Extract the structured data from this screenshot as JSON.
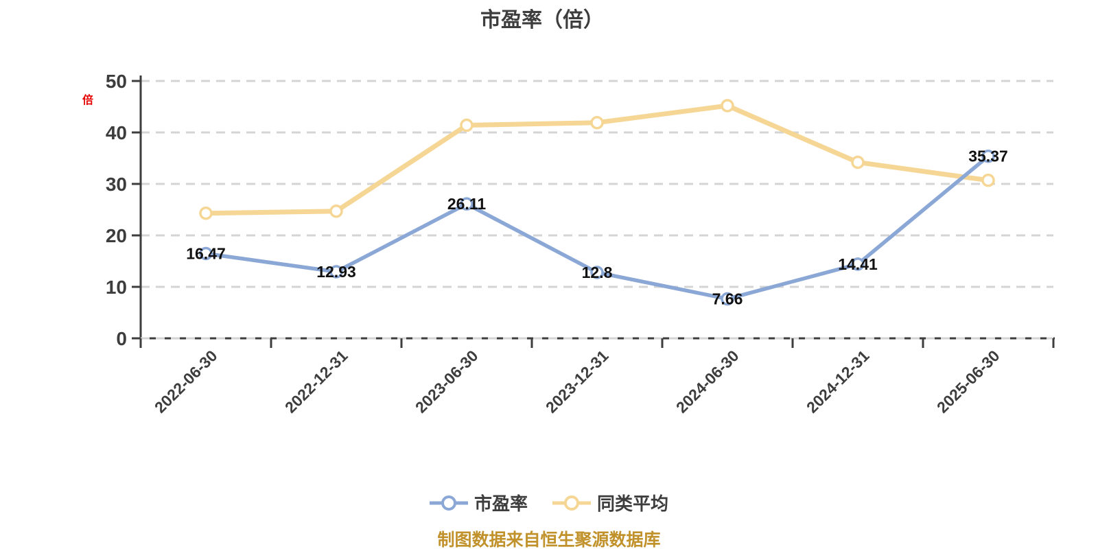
{
  "title": "市盈率（倍）",
  "y_unit_label": "倍",
  "source_note": "制图数据来自恒生聚源数据库",
  "colors": {
    "axis": "#3d3d3d",
    "grid": "#d4d4d4",
    "tick_text": "#3d3d3d",
    "data_label": "#111111",
    "title_text": "#3d3d3d",
    "unit_text": "#e60000",
    "source_text": "#c1922c",
    "marker_fill": "#ffffff"
  },
  "chart_data": {
    "type": "line",
    "title": "市盈率（倍）",
    "xlabel": "",
    "ylabel": "倍",
    "ylim": [
      0,
      50
    ],
    "y_ticks": [
      0,
      10,
      20,
      30,
      40,
      50
    ],
    "grid": "horizontal dashed",
    "legend_position": "bottom",
    "x_label_rotation": 45,
    "categories": [
      "2022-06-30",
      "2022-12-31",
      "2023-06-30",
      "2023-12-31",
      "2024-06-30",
      "2024-12-31",
      "2025-06-30"
    ],
    "series": [
      {
        "name": "市盈率",
        "id": "pe",
        "color": "#8aa7d6",
        "stroke_width": 5.5,
        "labels_visible": true,
        "values": [
          16.47,
          12.93,
          26.11,
          12.8,
          7.66,
          14.41,
          35.37
        ]
      },
      {
        "name": "同类平均",
        "id": "peer-avg",
        "color": "#f6d694",
        "stroke_width": 7,
        "labels_visible": false,
        "values_estimated": true,
        "values": [
          24.3,
          24.7,
          41.4,
          41.9,
          45.2,
          34.2,
          30.7
        ]
      }
    ]
  }
}
